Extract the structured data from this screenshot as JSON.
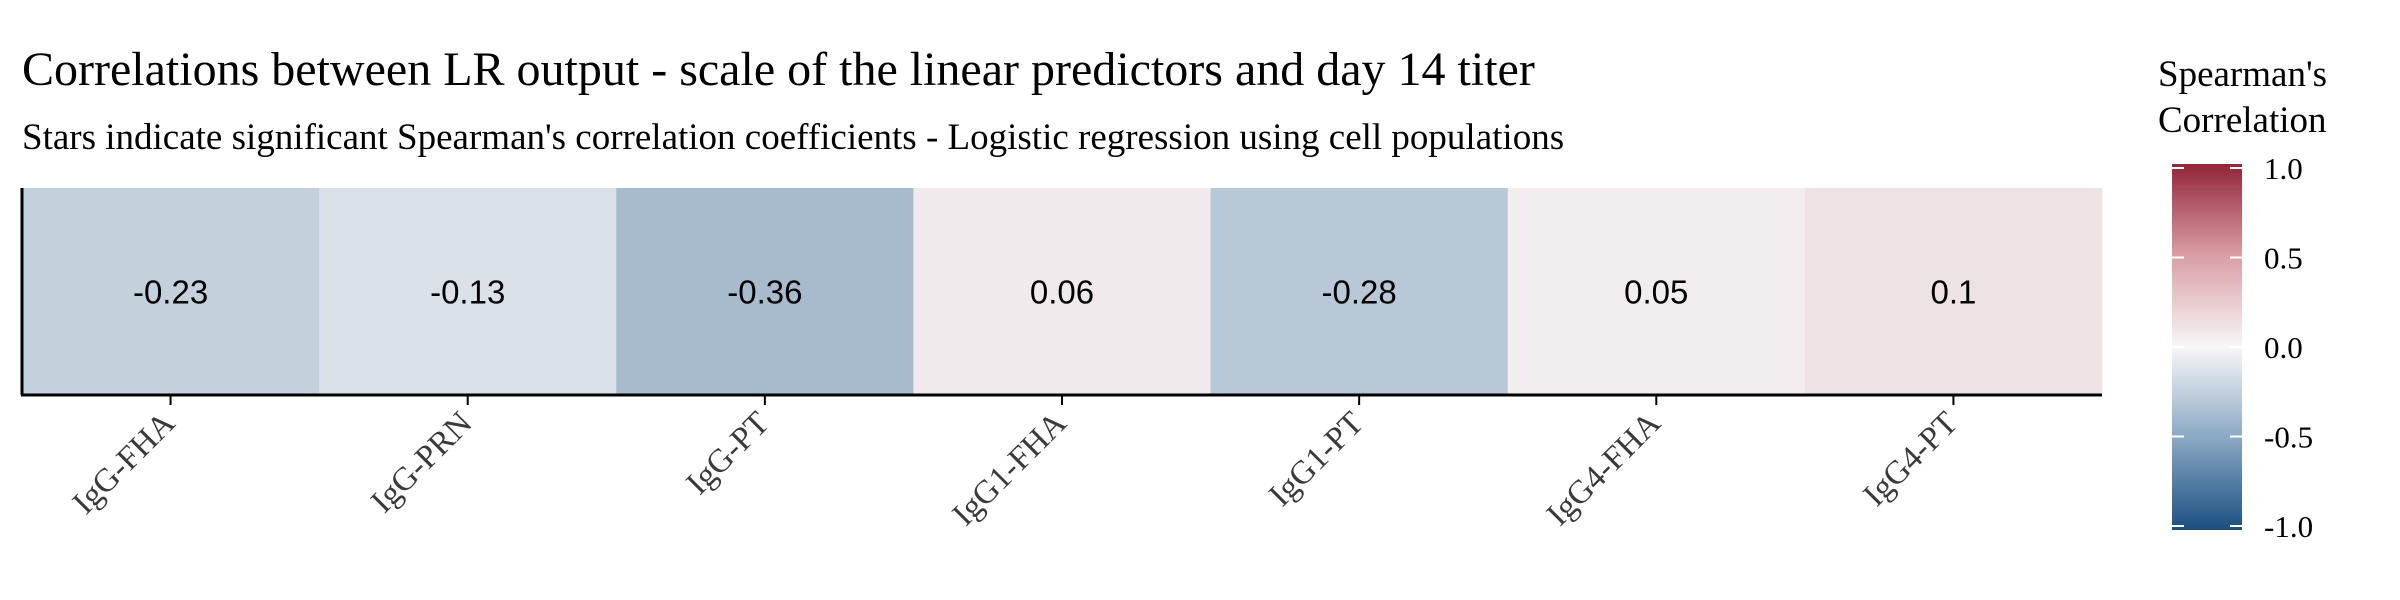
{
  "chart_data": {
    "type": "heatmap",
    "title": "Correlations between LR output - scale of the linear predictors and day 14 titer",
    "subtitle": "Stars indicate significant Spearman's correlation coefficients - Logistic regression using cell populations",
    "categories": [
      "IgG-FHA",
      "IgG-PRN",
      "IgG-PT",
      "IgG1-FHA",
      "IgG1-PT",
      "IgG4-FHA",
      "IgG4-PT"
    ],
    "values": [
      -0.23,
      -0.13,
      -0.36,
      0.06,
      -0.28,
      0.05,
      0.1
    ],
    "value_labels": [
      "-0.23",
      "-0.13",
      "-0.36",
      "0.06",
      "-0.28",
      "0.05",
      "0.1"
    ],
    "legend": {
      "title_lines": [
        "Spearman's",
        "Correlation"
      ],
      "ticks": [
        1.0,
        0.5,
        0.0,
        -0.5,
        -1.0
      ],
      "tick_labels": [
        "1.0",
        "0.5",
        "0.0",
        "-0.5",
        "-1.0"
      ],
      "range": [
        -1.0,
        1.0
      ],
      "placement": "right",
      "colors": {
        "low": "#1b4f80",
        "mid": "#f7f7f7",
        "high": "#92253a"
      }
    },
    "xlabel": "",
    "ylabel": "",
    "grid": false
  }
}
